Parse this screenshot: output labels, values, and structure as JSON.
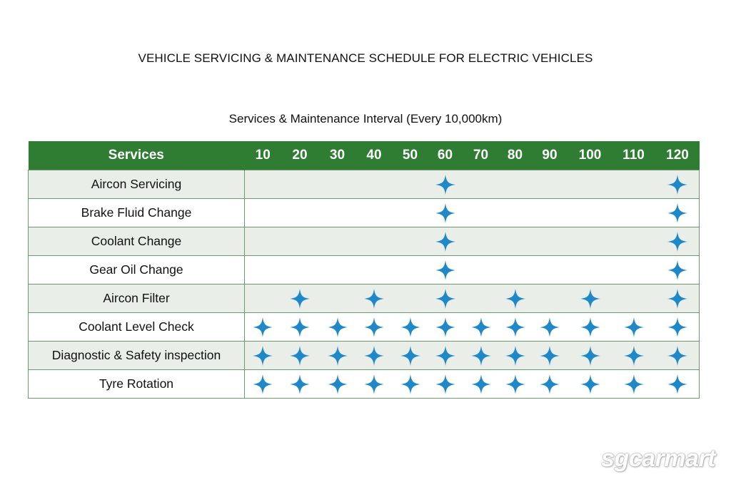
{
  "title": "VEHICLE SERVICING & MAINTENANCE SCHEDULE FOR ELECTRIC VEHICLES",
  "subtitle": "Services & Maintenance Interval (Every 10,000km)",
  "table": {
    "header_label": "Services",
    "intervals": [
      "10",
      "20",
      "30",
      "40",
      "50",
      "60",
      "70",
      "80",
      "90",
      "100",
      "110",
      "120"
    ],
    "rows": [
      {
        "service": "Aircon Servicing",
        "marks": [
          false,
          false,
          false,
          false,
          false,
          true,
          false,
          false,
          false,
          false,
          false,
          true
        ]
      },
      {
        "service": "Brake Fluid Change",
        "marks": [
          false,
          false,
          false,
          false,
          false,
          true,
          false,
          false,
          false,
          false,
          false,
          true
        ]
      },
      {
        "service": "Coolant Change",
        "marks": [
          false,
          false,
          false,
          false,
          false,
          true,
          false,
          false,
          false,
          false,
          false,
          true
        ]
      },
      {
        "service": "Gear Oil Change",
        "marks": [
          false,
          false,
          false,
          false,
          false,
          true,
          false,
          false,
          false,
          false,
          false,
          true
        ]
      },
      {
        "service": "Aircon Filter",
        "marks": [
          false,
          true,
          false,
          true,
          false,
          true,
          false,
          true,
          false,
          true,
          false,
          true
        ]
      },
      {
        "service": "Coolant Level Check",
        "marks": [
          true,
          true,
          true,
          true,
          true,
          true,
          true,
          true,
          true,
          true,
          true,
          true
        ]
      },
      {
        "service": "Diagnostic & Safety inspection",
        "marks": [
          true,
          true,
          true,
          true,
          true,
          true,
          true,
          true,
          true,
          true,
          true,
          true
        ]
      },
      {
        "service": "Tyre Rotation",
        "marks": [
          true,
          true,
          true,
          true,
          true,
          true,
          true,
          true,
          true,
          true,
          true,
          true
        ]
      }
    ]
  },
  "mark_icon": "four-point-star-icon",
  "colors": {
    "header_green": "#2e7d32",
    "row_shade": "#e9eee9",
    "star_blue": "#1e88c8"
  },
  "watermark": "sgcarmart"
}
